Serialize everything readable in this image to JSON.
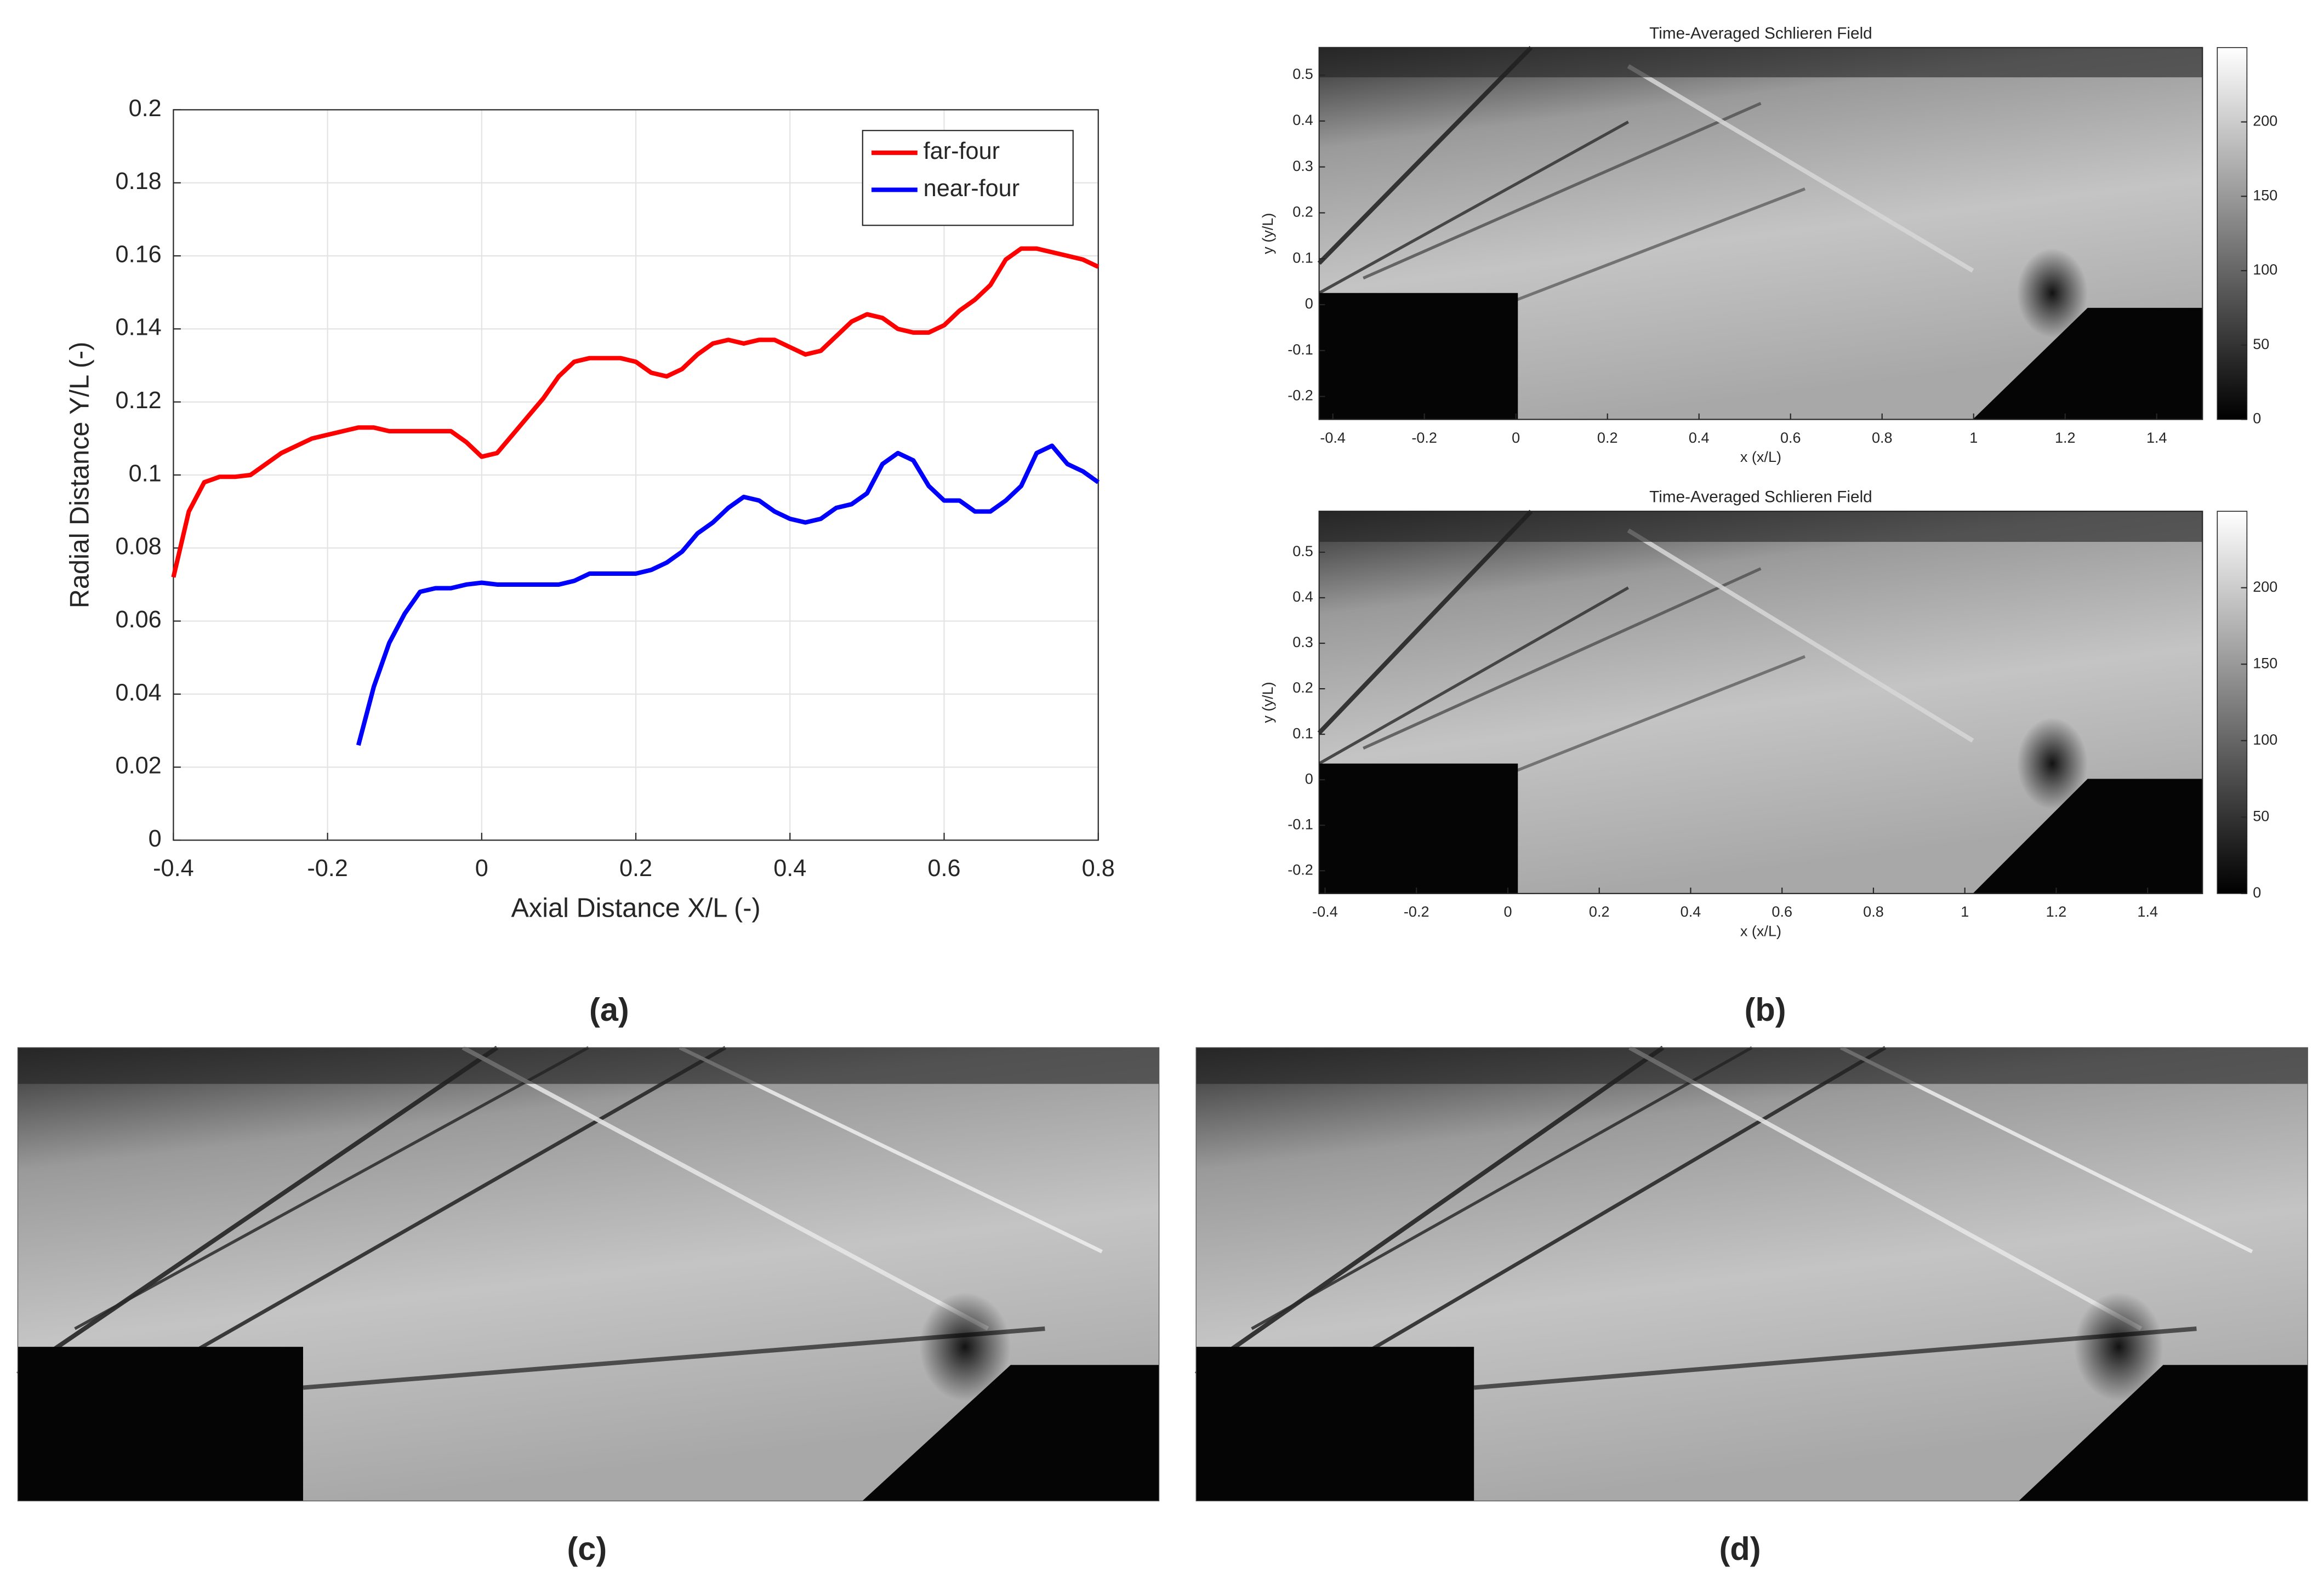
{
  "chart_data": [
    {
      "type": "line",
      "panel_label": "(a)",
      "x_label": "Axial Distance X/L (-)",
      "y_label": "Radial Distance Y/L (-)",
      "x": [
        -0.4,
        -0.38,
        -0.36,
        -0.34,
        -0.32,
        -0.3,
        -0.28,
        -0.26,
        -0.24,
        -0.22,
        -0.2,
        -0.18,
        -0.16,
        -0.14,
        -0.12,
        -0.1,
        -0.08,
        -0.06,
        -0.04,
        -0.02,
        0,
        0.02,
        0.04,
        0.06,
        0.08,
        0.1,
        0.12,
        0.14,
        0.16,
        0.18,
        0.2,
        0.22,
        0.24,
        0.26,
        0.28,
        0.3,
        0.32,
        0.34,
        0.36,
        0.38,
        0.4,
        0.42,
        0.44,
        0.46,
        0.48,
        0.5,
        0.52,
        0.54,
        0.56,
        0.58,
        0.6,
        0.62,
        0.64,
        0.66,
        0.68,
        0.7,
        0.72,
        0.74,
        0.76,
        0.78,
        0.8
      ],
      "series": [
        {
          "name": "far-four",
          "color": "#ff0000",
          "values": [
            0.072,
            0.09,
            0.098,
            0.0995,
            0.0995,
            0.1,
            0.103,
            0.106,
            0.108,
            0.11,
            0.111,
            0.112,
            0.113,
            0.113,
            0.112,
            0.112,
            0.112,
            0.112,
            0.112,
            0.109,
            0.105,
            0.106,
            0.111,
            0.116,
            0.121,
            0.127,
            0.131,
            0.132,
            0.132,
            0.132,
            0.131,
            0.128,
            0.127,
            0.129,
            0.133,
            0.136,
            0.137,
            0.136,
            0.137,
            0.137,
            0.135,
            0.133,
            0.134,
            0.138,
            0.142,
            0.144,
            0.143,
            0.14,
            0.139,
            0.139,
            0.141,
            0.145,
            0.148,
            0.152,
            0.159,
            0.162,
            0.162,
            0.161,
            0.16,
            0.159,
            0.157
          ]
        },
        {
          "name": "near-four",
          "color": "#0000ff",
          "values": [
            null,
            null,
            null,
            null,
            null,
            null,
            null,
            null,
            null,
            null,
            null,
            null,
            0.026,
            0.042,
            0.054,
            0.062,
            0.068,
            0.069,
            0.069,
            0.07,
            0.0705,
            0.07,
            0.07,
            0.07,
            0.07,
            0.07,
            0.071,
            0.073,
            0.073,
            0.073,
            0.073,
            0.074,
            0.076,
            0.079,
            0.084,
            0.087,
            0.091,
            0.094,
            0.093,
            0.09,
            0.088,
            0.087,
            0.088,
            0.091,
            0.092,
            0.095,
            0.103,
            0.106,
            0.104,
            0.097,
            0.093,
            0.093,
            0.09,
            0.09,
            0.093,
            0.097,
            0.106,
            0.108,
            0.103,
            0.101,
            0.098
          ]
        }
      ],
      "xlim": [
        -0.4,
        0.8
      ],
      "xticks": [
        -0.4,
        -0.2,
        0,
        0.2,
        0.4,
        0.6,
        0.8
      ],
      "ylim": [
        0,
        0.2
      ],
      "yticks": [
        0,
        0.02,
        0.04,
        0.06,
        0.08,
        0.1,
        0.12,
        0.14,
        0.16,
        0.18,
        0.2
      ],
      "grid": true,
      "legend": "northeast",
      "line_width": 3
    },
    {
      "type": "image",
      "panel_label": "(b)",
      "title": "Time-Averaged Schlieren Field",
      "x_label": "x (x/L)",
      "y_label": "y (y/L)",
      "xlim": [
        -0.43,
        1.5
      ],
      "xticks": [
        -0.4,
        -0.2,
        0,
        0.2,
        0.4,
        0.6,
        0.8,
        1,
        1.2,
        1.4
      ],
      "ylim": [
        -0.25,
        0.56
      ],
      "yticks": [
        -0.2,
        -0.1,
        0,
        0.1,
        0.2,
        0.3,
        0.4,
        0.5
      ],
      "clim": [
        0,
        250
      ],
      "cticks": [
        0,
        50,
        100,
        150,
        200
      ],
      "colormap": "gray"
    },
    {
      "type": "image",
      "title": "Time-Averaged Schlieren Field",
      "x_label": "x (x/L)",
      "y_label": "y (y/L)",
      "xlim": [
        -0.413,
        1.52
      ],
      "xticks": [
        -0.4,
        -0.2,
        0,
        0.2,
        0.4,
        0.6,
        0.8,
        1,
        1.2,
        1.4
      ],
      "ylim": [
        -0.25,
        0.59
      ],
      "yticks": [
        -0.2,
        -0.1,
        0,
        0.1,
        0.2,
        0.3,
        0.4,
        0.5
      ],
      "clim": [
        0,
        250
      ],
      "cticks": [
        0,
        50,
        100,
        150,
        200
      ],
      "colormap": "gray"
    },
    {
      "type": "photo",
      "panel_label": "(c)"
    },
    {
      "type": "photo",
      "panel_label": "(d)"
    }
  ]
}
